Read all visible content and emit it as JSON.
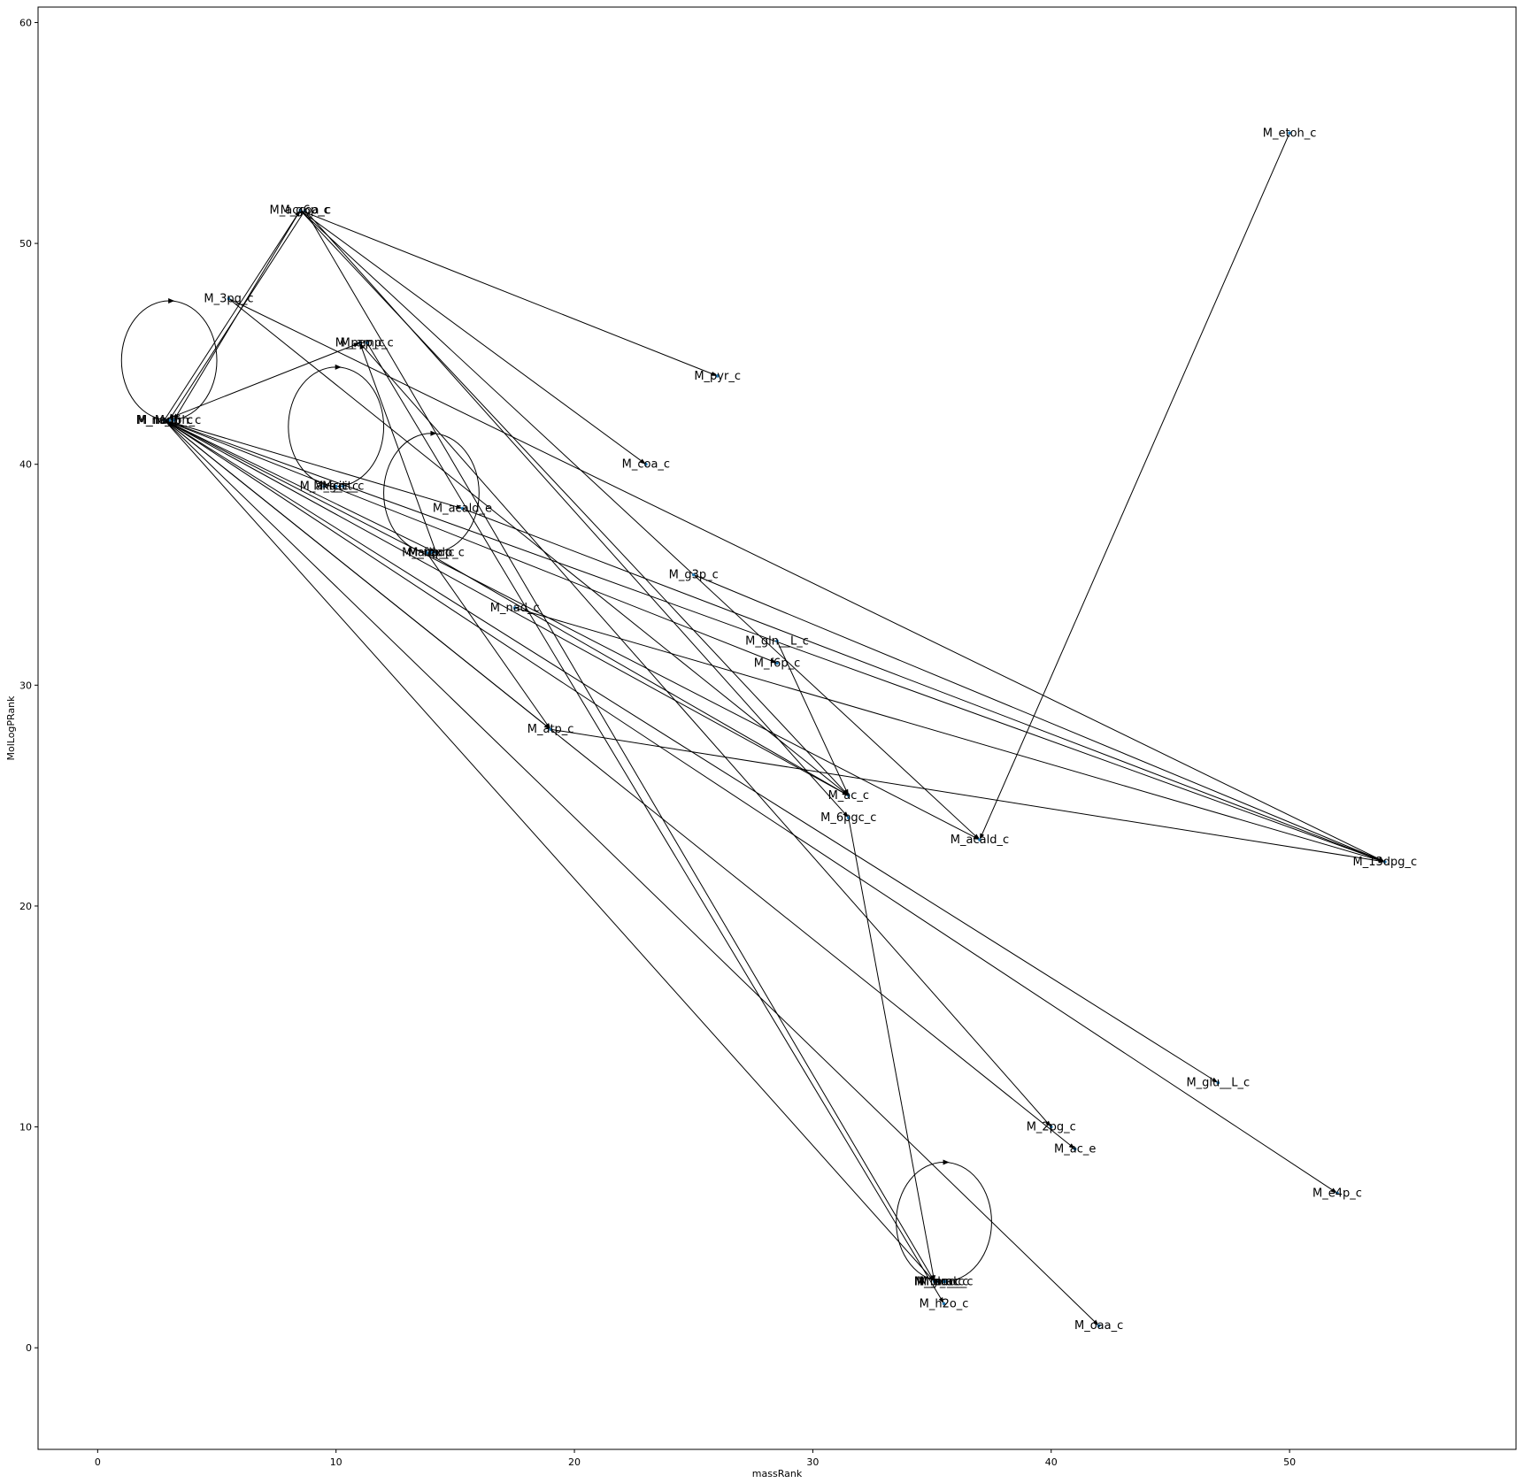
{
  "chart_data": {
    "type": "scatter",
    "xlabel": "massRank",
    "ylabel": "MolLogPRank",
    "xlim": [
      -2.5,
      59.5
    ],
    "ylim": [
      -4.6,
      60.7
    ],
    "xticks": [
      0,
      10,
      20,
      30,
      40,
      50
    ],
    "yticks": [
      0,
      10,
      20,
      30,
      40,
      50,
      60
    ],
    "grid": false,
    "colors": {
      "line": "#000000",
      "node": "#1f77b4"
    },
    "nodes": [
      {
        "id": "M_etoh_c",
        "x": 50,
        "y": 55
      },
      {
        "id": "M_accoa_c",
        "x": 8.5,
        "y": 51.5
      },
      {
        "id": "M_g6p_c",
        "x": 8.7,
        "y": 51.5
      },
      {
        "id": "M_3pg_c",
        "x": 5.5,
        "y": 47.5
      },
      {
        "id": "M_pep_c",
        "x": 11,
        "y": 45.5
      },
      {
        "id": "M_amp_c",
        "x": 11.3,
        "y": 45.5
      },
      {
        "id": "M_pyr_c",
        "x": 26,
        "y": 44
      },
      {
        "id": "M_nadh_c",
        "x": 2.8,
        "y": 42
      },
      {
        "id": "M_nadph_c",
        "x": 3,
        "y": 42
      },
      {
        "id": "M_pi_c",
        "x": 3.2,
        "y": 42
      },
      {
        "id": "M_coa_c",
        "x": 23,
        "y": 40
      },
      {
        "id": "M_akg_c",
        "x": 9.5,
        "y": 39
      },
      {
        "id": "M_icit_c",
        "x": 10,
        "y": 39
      },
      {
        "id": "M_cit_c",
        "x": 10.3,
        "y": 39
      },
      {
        "id": "M_acald_e",
        "x": 15.3,
        "y": 38
      },
      {
        "id": "M_adp_c",
        "x": 13.8,
        "y": 36
      },
      {
        "id": "M_fdp_c",
        "x": 14,
        "y": 36
      },
      {
        "id": "M_nadp_c",
        "x": 14.2,
        "y": 36
      },
      {
        "id": "M_g3p_c",
        "x": 25,
        "y": 35
      },
      {
        "id": "M_nad_c",
        "x": 17.5,
        "y": 33.5
      },
      {
        "id": "M_gln__L_c",
        "x": 28.5,
        "y": 32
      },
      {
        "id": "M_f6p_c",
        "x": 28.5,
        "y": 31
      },
      {
        "id": "M_atp_c",
        "x": 19,
        "y": 28
      },
      {
        "id": "M_ac_c",
        "x": 31.5,
        "y": 25
      },
      {
        "id": "M_6pgc_c",
        "x": 31.5,
        "y": 24
      },
      {
        "id": "M_acald_c",
        "x": 37,
        "y": 23
      },
      {
        "id": "M_13dpg_c",
        "x": 54,
        "y": 22
      },
      {
        "id": "M_glu__L_c",
        "x": 47,
        "y": 12
      },
      {
        "id": "M_2pg_c",
        "x": 40,
        "y": 10
      },
      {
        "id": "M_ac_e",
        "x": 41,
        "y": 9
      },
      {
        "id": "M_e4p_c",
        "x": 52,
        "y": 7
      },
      {
        "id": "M_h_c",
        "x": 35.1,
        "y": 3
      },
      {
        "id": "M_glc_c",
        "x": 35.2,
        "y": 3
      },
      {
        "id": "M_fum_c",
        "x": 35.3,
        "y": 3
      },
      {
        "id": "M_mal_c",
        "x": 35.5,
        "y": 3
      },
      {
        "id": "M_succ_c",
        "x": 35.6,
        "y": 3
      },
      {
        "id": "M_h2o_c",
        "x": 35.5,
        "y": 2
      },
      {
        "id": "M_oaa_c",
        "x": 42,
        "y": 1
      }
    ],
    "loops": [
      {
        "cx": 3,
        "cy": 44.7,
        "rx": 2,
        "ry": 2.7
      },
      {
        "cx": 10,
        "cy": 41.7,
        "rx": 2,
        "ry": 2.7
      },
      {
        "cx": 14,
        "cy": 38.7,
        "rx": 2,
        "ry": 2.7
      },
      {
        "cx": 35.5,
        "cy": 5.7,
        "rx": 2,
        "ry": 2.7
      }
    ],
    "edges": [
      {
        "from": "M_etoh_c",
        "to": "M_acald_c"
      },
      {
        "from": "M_accoa_c",
        "to": "M_pyr_c"
      },
      {
        "from": "M_accoa_c",
        "to": "M_coa_c"
      },
      {
        "from": "M_accoa_c",
        "to": "M_pi_c"
      },
      {
        "from": "M_accoa_c",
        "to": "M_acald_c"
      },
      {
        "from": "M_accoa_c",
        "to": "M_ac_c"
      },
      {
        "from": "M_g6p_c",
        "to": "M_nadph_c"
      },
      {
        "from": "M_g6p_c",
        "to": "M_6pgc_c"
      },
      {
        "from": "M_g6p_c",
        "to": "M_h_c"
      },
      {
        "from": "M_nadh_c",
        "to": "M_accoa_c"
      },
      {
        "from": "M_3pg_c",
        "to": "M_13dpg_c"
      },
      {
        "from": "M_3pg_c",
        "to": "M_ac_c"
      },
      {
        "from": "M_nadp_c",
        "to": "M_pep_c"
      },
      {
        "from": "M_pep_c",
        "to": "M_2pg_c"
      },
      {
        "from": "M_amp_c",
        "to": "M_h2o_c"
      },
      {
        "from": "M_nadh_c",
        "to": "M_acald_c"
      },
      {
        "from": "M_nadh_c",
        "to": "M_13dpg_c"
      },
      {
        "from": "M_nadh_c",
        "to": "M_f6p_c"
      },
      {
        "from": "M_nadh_c",
        "to": "M_ac_c"
      },
      {
        "from": "M_nadh_c",
        "to": "M_glu__L_c"
      },
      {
        "from": "M_nadh_c",
        "to": "M_e4p_c"
      },
      {
        "from": "M_nadh_c",
        "to": "M_ac_e"
      },
      {
        "from": "M_nadh_c",
        "to": "M_h_c"
      },
      {
        "from": "M_nadh_c",
        "to": "M_oaa_c"
      },
      {
        "from": "M_nadh_c",
        "to": "M_atp_c"
      },
      {
        "from": "M_nadh_c",
        "to": "M_pep_c"
      },
      {
        "from": "M_nadh_c",
        "to": "M_nadp_c"
      },
      {
        "from": "M_nadh_c",
        "to": "M_acald_e"
      },
      {
        "from": "M_acald_e",
        "to": "M_13dpg_c"
      },
      {
        "from": "M_g3p_c",
        "to": "M_13dpg_c"
      },
      {
        "from": "M_nad_c",
        "to": "M_13dpg_c"
      },
      {
        "from": "M_gln__L_c",
        "to": "M_ac_c"
      },
      {
        "from": "M_adp_c",
        "to": "M_atp_c"
      },
      {
        "from": "M_adp_c",
        "to": "M_ac_c"
      },
      {
        "from": "M_atp_c",
        "to": "M_13dpg_c"
      },
      {
        "from": "M_6pgc_c",
        "to": "M_h_c"
      }
    ]
  }
}
